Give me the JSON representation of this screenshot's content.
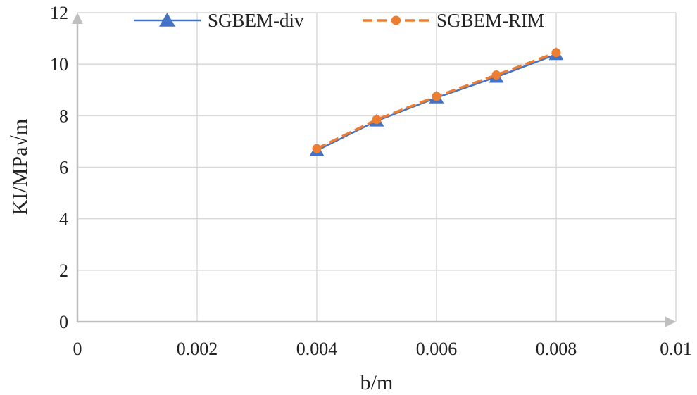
{
  "chart_data": {
    "type": "line",
    "title": "",
    "xlabel": "b/m",
    "ylabel": "KI/MPa√m",
    "xlim": [
      0,
      0.01
    ],
    "ylim": [
      0,
      12
    ],
    "xticks": [
      0,
      0.002,
      0.004,
      0.006,
      0.008,
      0.01
    ],
    "xtick_labels": [
      "0",
      "0.002",
      "0.004",
      "0.006",
      "0.008",
      "0.01"
    ],
    "yticks": [
      0,
      2,
      4,
      6,
      8,
      10,
      12
    ],
    "ytick_labels": [
      "0",
      "2",
      "4",
      "6",
      "8",
      "10",
      "12"
    ],
    "grid": true,
    "legend_position": "top",
    "series": [
      {
        "name": "SGBEM-div",
        "color": "#4472C4",
        "marker": "triangle",
        "line_style": "solid",
        "x": [
          0.004,
          0.005,
          0.006,
          0.007,
          0.008
        ],
        "y": [
          6.65,
          7.8,
          8.7,
          9.5,
          10.38
        ]
      },
      {
        "name": "SGBEM-RIM",
        "color": "#ED7D31",
        "marker": "circle",
        "line_style": "dashed",
        "x": [
          0.004,
          0.005,
          0.006,
          0.007,
          0.008
        ],
        "y": [
          6.72,
          7.85,
          8.75,
          9.58,
          10.45
        ]
      }
    ]
  }
}
